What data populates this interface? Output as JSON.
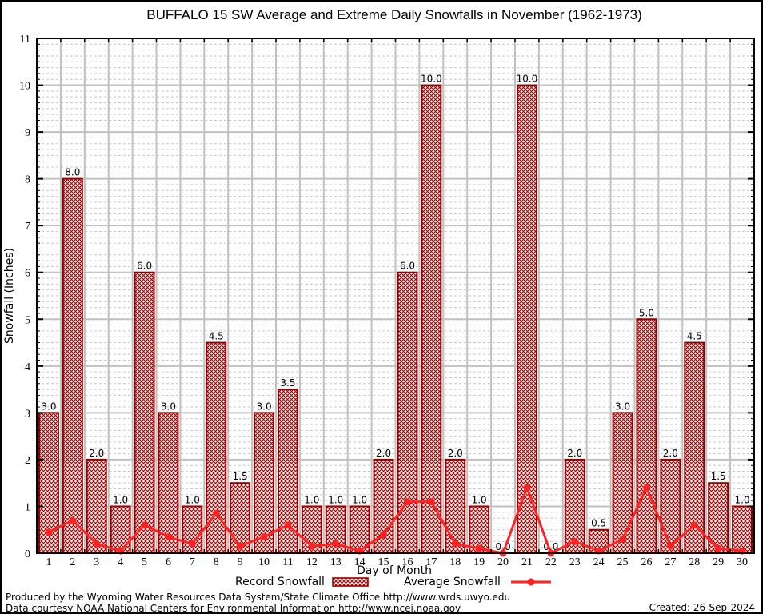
{
  "title": "BUFFALO 15 SW Average and Extreme Daily Snowfalls in November (1962-1973)",
  "ylabel": "Snowfall (Inches)",
  "xlabel": "Day of Month",
  "legend": {
    "record": "Record Snowfall",
    "average": "Average Snowfall"
  },
  "footer": {
    "line1": "Produced by the Wyoming Water Resources Data System/State Climate Office http://www.wrds.uwyo.edu",
    "line2": "Data courtesy NOAA National Centers for Environmental Information http://www.ncei.noaa.gov",
    "created": "Created: 26-Sep-2024"
  },
  "colors": {
    "bar": "#990000",
    "line": "#ff2222",
    "grid_major": "#c0c0c0",
    "grid_minor": "#c6c6c6",
    "axis": "#000000"
  },
  "chart_data": {
    "type": "bar",
    "title": "BUFFALO 15 SW Average and Extreme Daily Snowfalls in November (1962-1973)",
    "xlabel": "Day of Month",
    "ylabel": "Snowfall (Inches)",
    "categories": [
      1,
      2,
      3,
      4,
      5,
      6,
      7,
      8,
      9,
      10,
      11,
      12,
      13,
      14,
      15,
      16,
      17,
      18,
      19,
      20,
      21,
      22,
      23,
      24,
      25,
      26,
      27,
      28,
      29,
      30
    ],
    "series": [
      {
        "name": "Record Snowfall",
        "type": "bar",
        "values": [
          3.0,
          8.0,
          2.0,
          1.0,
          6.0,
          3.0,
          1.0,
          4.5,
          1.5,
          3.0,
          3.5,
          1.0,
          1.0,
          1.0,
          2.0,
          6.0,
          10.0,
          2.0,
          1.0,
          0.0,
          10.0,
          0.0,
          2.0,
          0.5,
          3.0,
          5.0,
          2.0,
          4.5,
          1.5,
          1.0
        ]
      },
      {
        "name": "Average Snowfall",
        "type": "line",
        "values": [
          0.45,
          0.7,
          0.2,
          0.05,
          0.6,
          0.35,
          0.2,
          0.85,
          0.15,
          0.35,
          0.6,
          0.15,
          0.2,
          0.05,
          0.4,
          1.1,
          1.1,
          0.2,
          0.1,
          0.0,
          1.4,
          0.0,
          0.25,
          0.05,
          0.3,
          1.4,
          0.15,
          0.6,
          0.1,
          0.05
        ]
      }
    ],
    "ylim": [
      0,
      11
    ],
    "ytick_step": 1,
    "minor_intervals_per_unit": 8,
    "grid": true,
    "bar_labels_decimals": 1,
    "legend_position": "bottom"
  }
}
